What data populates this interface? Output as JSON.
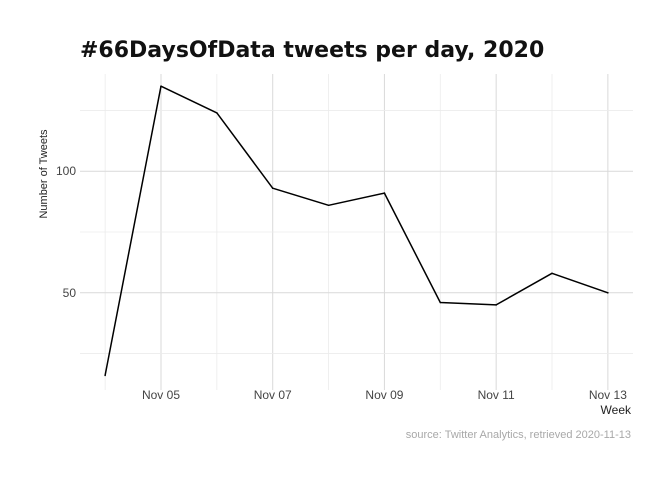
{
  "chart_data": {
    "type": "line",
    "title": "#66DaysOfData tweets per day, 2020",
    "xlabel": "Week",
    "ylabel": "Number of Tweets",
    "caption": "source: Twitter Analytics, retrieved 2020-11-13",
    "x": [
      "2020-11-04",
      "2020-11-05",
      "2020-11-06",
      "2020-11-07",
      "2020-11-08",
      "2020-11-09",
      "2020-11-10",
      "2020-11-11",
      "2020-11-12",
      "2020-11-13"
    ],
    "values": [
      16,
      135,
      124,
      93,
      86,
      91,
      46,
      45,
      58,
      50
    ],
    "x_ticks": [
      {
        "date": "2020-11-05",
        "label": "Nov 05"
      },
      {
        "date": "2020-11-07",
        "label": "Nov 07"
      },
      {
        "date": "2020-11-09",
        "label": "Nov 09"
      },
      {
        "date": "2020-11-11",
        "label": "Nov 11"
      },
      {
        "date": "2020-11-13",
        "label": "Nov 13"
      }
    ],
    "y_ticks": [
      50,
      100
    ],
    "y_minor_grid": [
      25,
      75,
      125
    ],
    "xlim": [
      "2020-11-04",
      "2020-11-13"
    ],
    "ylim": [
      10,
      140
    ],
    "grid": true,
    "line_color": "#000000"
  }
}
